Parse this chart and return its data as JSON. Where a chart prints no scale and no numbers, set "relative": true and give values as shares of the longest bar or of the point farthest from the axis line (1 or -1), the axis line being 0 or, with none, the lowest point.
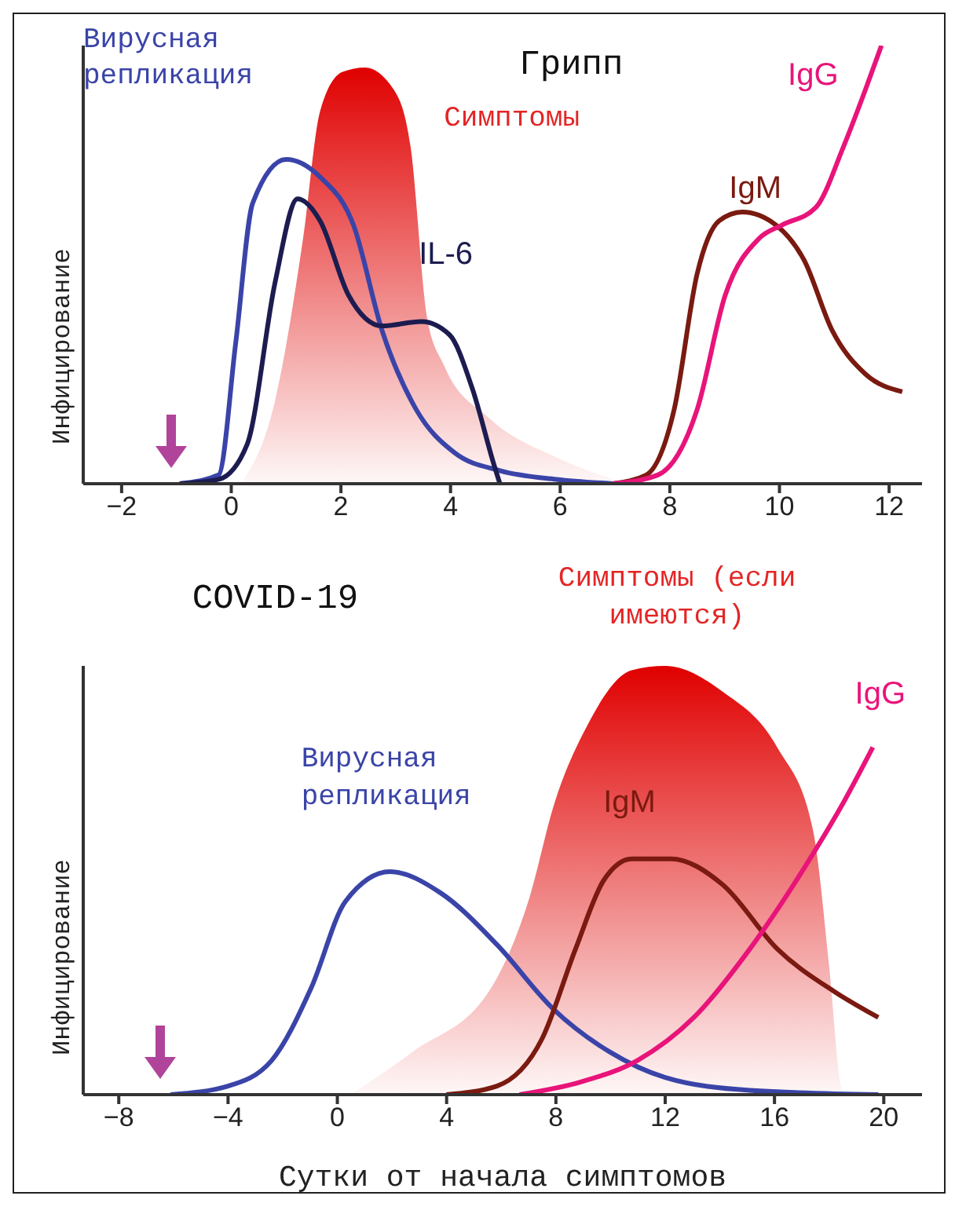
{
  "chart_data": [
    {
      "type": "line",
      "title": "Грипп",
      "ylabel": "Инфицирование",
      "relative": true,
      "xlim": [
        -2.7,
        12.6
      ],
      "xticks": [
        -2,
        0,
        2,
        4,
        6,
        8,
        10,
        12
      ],
      "marker": "none",
      "line_style": "solid",
      "series": [
        {
          "name": "Симптомы",
          "type": "area",
          "color": "#e00000",
          "x": [
            0.18,
            0.8,
            1.31,
            1.62,
            2.03,
            2.44,
            2.96,
            3.27,
            3.57,
            3.88,
            4.7,
            5.93,
            6.96
          ],
          "values": [
            0,
            0.19,
            0.56,
            0.85,
            0.94,
            0.95,
            0.9,
            0.77,
            0.38,
            0.27,
            0.15,
            0.06,
            0.01
          ]
        },
        {
          "name": "Вирусная репликация",
          "color": "#3a44a8",
          "x": [
            -0.94,
            -0.23,
            0.08,
            0.39,
            1.0,
            1.62,
            2.23,
            2.75,
            3.37,
            4.08,
            4.9,
            5.93,
            6.96
          ],
          "values": [
            0,
            0.02,
            0.32,
            0.64,
            0.74,
            0.7,
            0.59,
            0.35,
            0.17,
            0.07,
            0.03,
            0.01,
            0
          ]
        },
        {
          "name": "IL-6",
          "color": "#1c1c50",
          "x": [
            -0.94,
            -0.23,
            0.29,
            0.8,
            1.21,
            1.62,
            2.14,
            2.75,
            3.47,
            3.98,
            4.39,
            4.8,
            4.9
          ],
          "values": [
            0,
            0.01,
            0.09,
            0.46,
            0.65,
            0.6,
            0.43,
            0.36,
            0.37,
            0.34,
            0.22,
            0.04,
            0
          ]
        },
        {
          "name": "IgM",
          "color": "#7a1a10",
          "x": [
            6.96,
            7.57,
            8.08,
            8.5,
            8.9,
            9.32,
            9.94,
            10.45,
            10.96,
            11.57,
            12.24
          ],
          "values": [
            0,
            0.02,
            0.17,
            0.48,
            0.6,
            0.62,
            0.59,
            0.51,
            0.35,
            0.25,
            0.21
          ]
        },
        {
          "name": "IgG",
          "color": "#e8147a",
          "x": [
            6.96,
            7.78,
            8.5,
            9.01,
            9.63,
            10.04,
            10.66,
            11.17,
            11.57,
            11.86
          ],
          "values": [
            0,
            0.02,
            0.17,
            0.43,
            0.56,
            0.59,
            0.63,
            0.77,
            0.9,
            1
          ]
        }
      ]
    },
    {
      "type": "line",
      "title": "COVID-19",
      "ylabel": "Инфицирование",
      "xlabel": "Сутки от начала симптомов",
      "relative": true,
      "xlim": [
        -9.3,
        21.4
      ],
      "xticks": [
        -8,
        -4,
        0,
        4,
        8,
        12,
        16,
        20
      ],
      "marker": "none",
      "line_style": "solid",
      "series": [
        {
          "name": "Симптомы (если имеются)",
          "type": "area",
          "color": "#e00000",
          "x": [
            0.49,
            2.76,
            5.64,
            7.08,
            7.9,
            9.14,
            10.78,
            12.0,
            14.1,
            16.1,
            17.4,
            18.0,
            18.4,
            18.5
          ],
          "values": [
            0,
            0.1,
            0.25,
            0.47,
            0.67,
            0.86,
            0.99,
            1,
            0.94,
            0.81,
            0.62,
            0.3,
            0.03,
            0
          ]
        },
        {
          "name": "Вирусная репликация",
          "color": "#3a44a8",
          "x": [
            -6.1,
            -4.0,
            -2.4,
            -0.95,
            0.29,
            1.93,
            3.79,
            5.84,
            7.9,
            9.96,
            12.0,
            15.1,
            19.8
          ],
          "values": [
            0,
            0.02,
            0.08,
            0.25,
            0.45,
            0.52,
            0.47,
            0.35,
            0.2,
            0.1,
            0.04,
            0.01,
            0
          ]
        },
        {
          "name": "IgM",
          "color": "#7a1a10",
          "x": [
            3.99,
            5.84,
            7.49,
            8.72,
            9.75,
            10.78,
            12.2,
            14.1,
            16.1,
            18.2,
            19.8
          ],
          "values": [
            0,
            0.02,
            0.13,
            0.34,
            0.5,
            0.55,
            0.55,
            0.49,
            0.34,
            0.24,
            0.18
          ]
        },
        {
          "name": "IgG",
          "color": "#e8147a",
          "x": [
            6.67,
            8.93,
            10.99,
            13.05,
            15.1,
            17.2,
            18.6,
            19.6
          ],
          "values": [
            0,
            0.03,
            0.08,
            0.18,
            0.34,
            0.54,
            0.69,
            0.81
          ]
        }
      ]
    }
  ]
}
